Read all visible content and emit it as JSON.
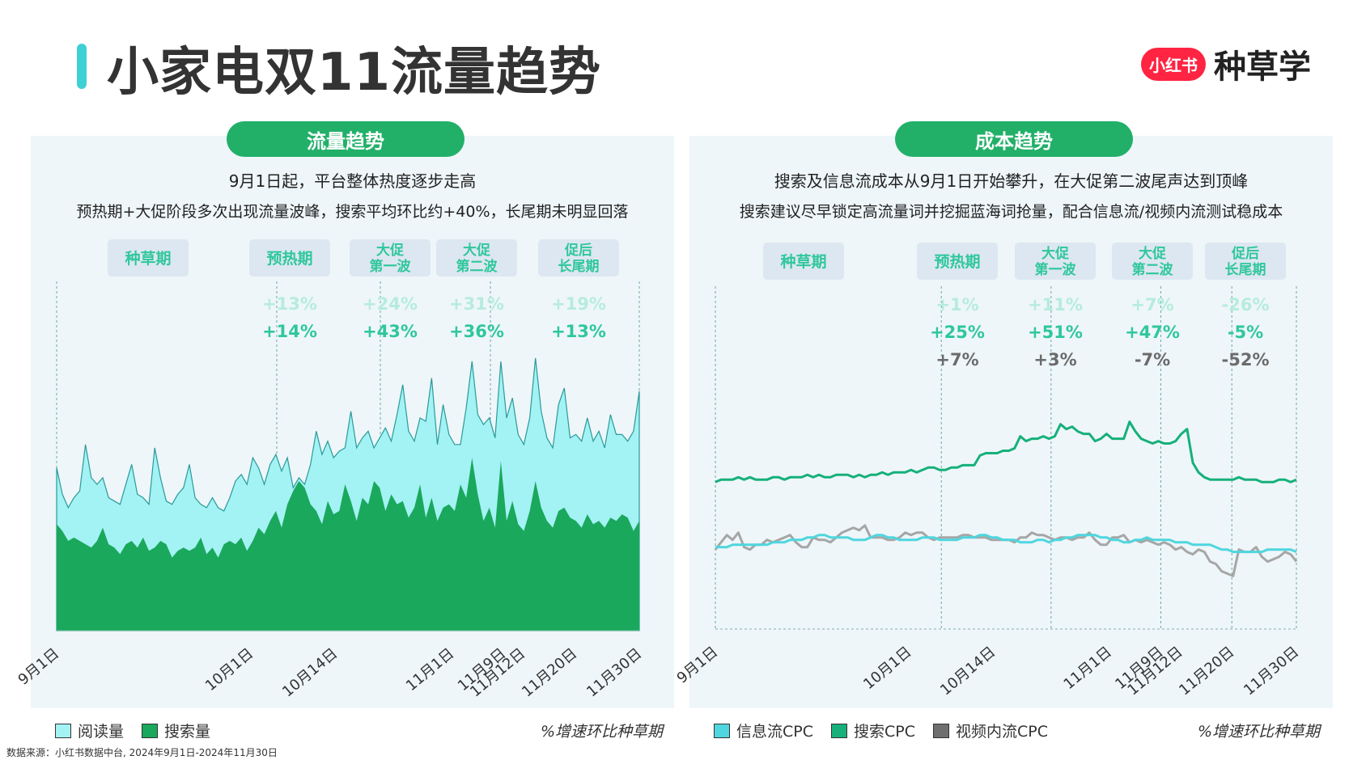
{
  "page": {
    "title": "小家电双11流量趋势",
    "brand_logo": "小红书",
    "brand_text": "种草学",
    "source": "数据来源：小红书数据中台, 2024年9月1日-2024年11月30日"
  },
  "left": {
    "pill": "流量趋势",
    "subtitle1": "9月1日起，平台整体热度逐步走高",
    "subtitle2": "预热期+大促阶段多次出现流量波峰，搜索平均环比约+40%，长尾期未明显回落",
    "note": "%增速环比种草期"
  },
  "right": {
    "pill": "成本趋势",
    "subtitle1": "搜索及信息流成本从9月1日开始攀升，在大促第二波尾声达到顶峰",
    "subtitle2": "搜索建议尽早锁定高流量词并挖掘蓝海词抢量，配合信息流/视频内流测试稳成本",
    "note": "%增速环比种草期"
  },
  "colors": {
    "read_fill": "#a3f2f4",
    "search_fill": "#1aa85c",
    "info_line": "#4fd6de",
    "search_line": "#16b07a",
    "video_line": "#a6a6a6",
    "pill": "#22b069",
    "phase_box": "#dde7f1",
    "phase_text": "#2fc79c"
  },
  "chart_data": [
    {
      "type": "area",
      "x_ticks": [
        "9月1日",
        "10月1日",
        "10月14日",
        "11月1日",
        "11月9日",
        "11月12日",
        "11月20日",
        "11月30日"
      ],
      "phases": [
        {
          "label": "种草期",
          "pct": []
        },
        {
          "label": "预热期",
          "pct": [
            "+13%",
            "+14%"
          ]
        },
        {
          "label": "大促\n第一波",
          "pct": [
            "+24%",
            "+43%"
          ]
        },
        {
          "label": "大促\n第二波",
          "pct": [
            "+31%",
            "+36%"
          ]
        },
        {
          "label": "促后\n长尾期",
          "pct": [
            "+19%",
            "+13%"
          ]
        }
      ],
      "series": [
        {
          "name": "阅读量",
          "values": [
            49,
            41,
            37,
            40,
            42,
            56,
            46,
            44,
            46,
            40,
            39,
            38,
            44,
            50,
            41,
            40,
            38,
            55,
            46,
            39,
            38,
            41,
            43,
            50,
            40,
            38,
            37,
            40,
            37,
            36,
            40,
            45,
            47,
            44,
            52,
            49,
            44,
            50,
            53,
            48,
            52,
            43,
            46,
            44,
            50,
            60,
            53,
            57,
            52,
            54,
            55,
            66,
            55,
            58,
            60,
            55,
            58,
            61,
            57,
            65,
            74,
            60,
            57,
            64,
            63,
            76,
            56,
            68,
            59,
            56,
            56,
            67,
            81,
            65,
            62,
            64,
            58,
            81,
            64,
            70,
            59,
            56,
            64,
            82,
            66,
            58,
            55,
            68,
            73,
            58,
            59,
            57,
            64,
            57,
            60,
            55,
            65,
            59,
            59,
            57,
            60,
            72
          ]
        },
        {
          "name": "搜索量",
          "values": [
            32,
            30,
            27,
            28,
            27,
            26,
            25,
            27,
            31,
            26,
            25,
            23,
            26,
            27,
            25,
            28,
            24,
            25,
            27,
            26,
            22,
            24,
            25,
            24,
            25,
            28,
            23,
            25,
            22,
            26,
            27,
            26,
            28,
            24,
            27,
            31,
            29,
            33,
            36,
            31,
            38,
            42,
            45,
            43,
            38,
            36,
            32,
            39,
            35,
            36,
            44,
            39,
            33,
            40,
            38,
            45,
            43,
            36,
            41,
            38,
            39,
            34,
            37,
            44,
            34,
            40,
            33,
            37,
            38,
            36,
            44,
            40,
            52,
            41,
            33,
            37,
            31,
            51,
            33,
            39,
            32,
            30,
            36,
            45,
            37,
            33,
            31,
            36,
            37,
            34,
            33,
            31,
            35,
            32,
            33,
            31,
            34,
            33,
            35,
            34,
            30,
            33
          ]
        }
      ]
    },
    {
      "type": "line",
      "x_ticks": [
        "9月1日",
        "10月1日",
        "10月14日",
        "11月1日",
        "11月9日",
        "11月12日",
        "11月20日",
        "11月30日"
      ],
      "phases": [
        {
          "label": "种草期",
          "pct": []
        },
        {
          "label": "预热期",
          "pct": [
            "+1%",
            "+25%",
            "+7%"
          ]
        },
        {
          "label": "大促\n第一波",
          "pct": [
            "+11%",
            "+51%",
            "+3%"
          ]
        },
        {
          "label": "大促\n第二波",
          "pct": [
            "+7%",
            "+47%",
            "-7%"
          ]
        },
        {
          "label": "促后\n长尾期",
          "pct": [
            "-26%",
            "-5%",
            "-52%"
          ]
        }
      ],
      "series": [
        {
          "name": "信息流CPC",
          "values": [
            34,
            34,
            34,
            35,
            35,
            35,
            35,
            35,
            35,
            35,
            36,
            36,
            36,
            37,
            37,
            37,
            38,
            38,
            39,
            39,
            38,
            38,
            38,
            38,
            37,
            37,
            37,
            38,
            39,
            39,
            38,
            38,
            37,
            37,
            37,
            37,
            38,
            38,
            38,
            37,
            37,
            37,
            37,
            38,
            38,
            38,
            39,
            39,
            38,
            38,
            37,
            37,
            37,
            36,
            36,
            36,
            37,
            37,
            36,
            37,
            37,
            38,
            38,
            39,
            39,
            39,
            39,
            38,
            38,
            37,
            37,
            36,
            36,
            37,
            37,
            38,
            37,
            37,
            37,
            37,
            36,
            36,
            36,
            35,
            35,
            35,
            35,
            34,
            33,
            33,
            32,
            32,
            32,
            32,
            32,
            32,
            33,
            33,
            33,
            33,
            33,
            32
          ]
        },
        {
          "name": "搜索CPC",
          "values": [
            61,
            62,
            62,
            62,
            63,
            62,
            63,
            62,
            62,
            62,
            63,
            63,
            62,
            63,
            63,
            63,
            64,
            63,
            64,
            63,
            63,
            64,
            64,
            64,
            63,
            64,
            63,
            64,
            64,
            65,
            64,
            65,
            65,
            65,
            66,
            65,
            66,
            67,
            67,
            66,
            66,
            67,
            67,
            68,
            68,
            68,
            72,
            73,
            73,
            73,
            74,
            74,
            75,
            80,
            78,
            79,
            79,
            80,
            79,
            80,
            85,
            83,
            84,
            82,
            81,
            81,
            78,
            79,
            81,
            79,
            79,
            79,
            86,
            82,
            79,
            78,
            77,
            78,
            77,
            77,
            78,
            81,
            83,
            69,
            65,
            63,
            62,
            62,
            62,
            62,
            62,
            63,
            62,
            62,
            62,
            61,
            61,
            61,
            62,
            62,
            61,
            62
          ]
        },
        {
          "name": "视频内流CPC",
          "values": [
            33,
            36,
            39,
            37,
            40,
            34,
            33,
            35,
            35,
            37,
            36,
            37,
            38,
            39,
            36,
            34,
            34,
            38,
            37,
            37,
            36,
            38,
            40,
            41,
            42,
            41,
            43,
            38,
            38,
            38,
            37,
            37,
            38,
            40,
            39,
            40,
            40,
            38,
            37,
            38,
            38,
            38,
            38,
            39,
            39,
            38,
            38,
            38,
            37,
            37,
            37,
            37,
            36,
            38,
            38,
            40,
            39,
            39,
            38,
            37,
            38,
            38,
            37,
            38,
            38,
            40,
            37,
            35,
            35,
            38,
            38,
            39,
            36,
            37,
            36,
            37,
            36,
            35,
            36,
            35,
            33,
            34,
            32,
            31,
            33,
            32,
            28,
            27,
            24,
            23,
            22,
            33,
            32,
            32,
            34,
            30,
            28,
            29,
            30,
            32,
            31,
            28
          ]
        }
      ]
    }
  ]
}
